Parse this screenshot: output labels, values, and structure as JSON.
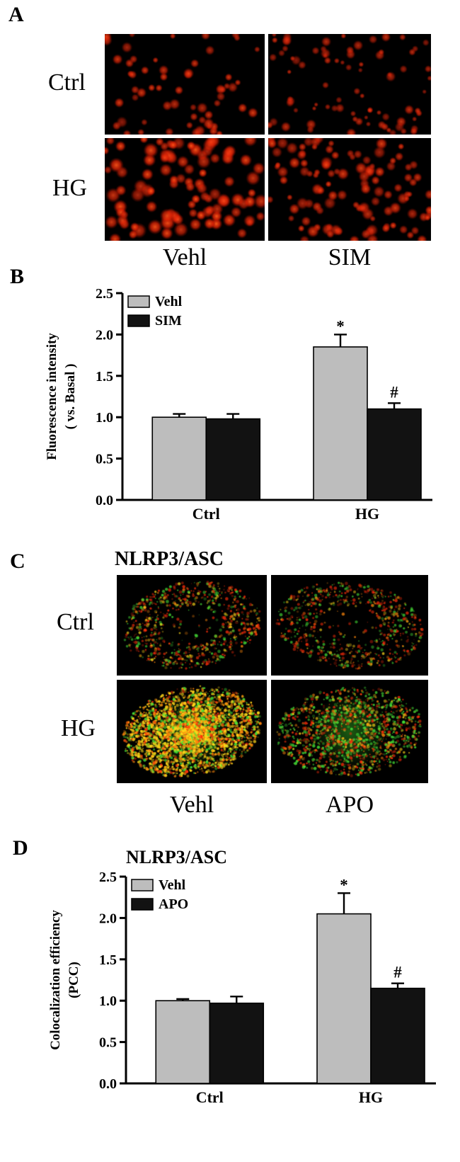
{
  "figure": {
    "panelA": {
      "label": "A",
      "row_labels": [
        "Ctrl",
        "HG"
      ],
      "col_labels": [
        "Vehl",
        "SIM"
      ],
      "stain_color": "#ff3300",
      "cells": [
        {
          "name": "micrograph-ctrl-vehl",
          "render": {
            "seed": 7,
            "dots": 60,
            "rmin": 2.2,
            "rmax": 4.6,
            "bright": 0.85
          }
        },
        {
          "name": "micrograph-ctrl-sim",
          "render": {
            "seed": 13,
            "dots": 82,
            "rmin": 1.8,
            "rmax": 4.2,
            "bright": 0.8
          }
        },
        {
          "name": "micrograph-hg-vehl",
          "render": {
            "seed": 21,
            "dots": 100,
            "rmin": 3.2,
            "rmax": 6.2,
            "bright": 1.0
          }
        },
        {
          "name": "micrograph-hg-sim",
          "render": {
            "seed": 29,
            "dots": 112,
            "rmin": 2.4,
            "rmax": 5.0,
            "bright": 0.9
          }
        }
      ]
    },
    "panelB": {
      "label": "B"
    },
    "panelC": {
      "label": "C",
      "title": "NLRP3/ASC",
      "row_labels": [
        "Ctrl",
        "HG"
      ],
      "col_labels": [
        "Vehl",
        "APO"
      ],
      "cells": [
        {
          "name": "confocal-ctrl-vehl",
          "render": {
            "seed": 41,
            "density": 950,
            "mix": {
              "red": 0.45,
              "orange": 0.1,
              "yellow": 0.17,
              "green": 0.28
            },
            "edgeBias": 0.5,
            "nucleus": 0.42,
            "bright": 0.8,
            "tilt": -8,
            "greenCore": false
          }
        },
        {
          "name": "confocal-ctrl-apo",
          "render": {
            "seed": 43,
            "density": 850,
            "mix": {
              "red": 0.42,
              "orange": 0.15,
              "yellow": 0.13,
              "green": 0.3
            },
            "edgeBias": 0.5,
            "nucleus": 0.45,
            "bright": 0.75,
            "tilt": 6,
            "greenCore": false
          }
        },
        {
          "name": "confocal-hg-vehl",
          "render": {
            "seed": 47,
            "density": 3200,
            "mix": {
              "red": 0.12,
              "orange": 0.25,
              "yellow": 0.45,
              "green": 0.18
            },
            "edgeBias": 0.85,
            "nucleus": 0.0,
            "bright": 1.0,
            "tilt": -10,
            "greenCore": true
          }
        },
        {
          "name": "confocal-hg-apo",
          "render": {
            "seed": 53,
            "density": 1600,
            "mix": {
              "red": 0.32,
              "orange": 0.12,
              "yellow": 0.14,
              "green": 0.42
            },
            "edgeBias": 0.75,
            "nucleus": 0.18,
            "bright": 0.85,
            "tilt": -5,
            "greenCore": true
          }
        }
      ]
    },
    "panelD": {
      "label": "D",
      "title": "NLRP3/ASC"
    }
  },
  "chart_data": [
    {
      "type": "bar",
      "panel": "B",
      "title": "",
      "categories": [
        "Ctrl",
        "HG"
      ],
      "series": [
        {
          "name": "Vehl",
          "color": "#bdbdbd",
          "values": [
            1.0,
            1.85
          ],
          "errors": [
            0.04,
            0.15
          ],
          "annotations": [
            "",
            "*"
          ]
        },
        {
          "name": "SIM",
          "color": "#121212",
          "values": [
            0.98,
            1.1
          ],
          "errors": [
            0.06,
            0.07
          ],
          "annotations": [
            "",
            "#"
          ]
        }
      ],
      "ylabel_lines": [
        "Fluorescence intensity",
        "( vs. Basal )"
      ],
      "xlabel": "",
      "ylim": [
        0,
        2.5
      ],
      "yticks": [
        0,
        0.5,
        1,
        1.5,
        2,
        2.5
      ],
      "legend_position": "top-left",
      "grid": false
    },
    {
      "type": "bar",
      "panel": "D",
      "title": "NLRP3/ASC",
      "categories": [
        "Ctrl",
        "HG"
      ],
      "series": [
        {
          "name": "Vehl",
          "color": "#bdbdbd",
          "values": [
            1.0,
            2.05
          ],
          "errors": [
            0.02,
            0.25
          ],
          "annotations": [
            "",
            "*"
          ]
        },
        {
          "name": "APO",
          "color": "#121212",
          "values": [
            0.97,
            1.15
          ],
          "errors": [
            0.08,
            0.06
          ],
          "annotations": [
            "",
            "#"
          ]
        }
      ],
      "ylabel_lines": [
        "Colocalization efficiency",
        "(PCC)"
      ],
      "xlabel": "",
      "ylim": [
        0,
        2.5
      ],
      "yticks": [
        0,
        0.5,
        1,
        1.5,
        2,
        2.5
      ],
      "legend_position": "top-left",
      "grid": false
    }
  ]
}
